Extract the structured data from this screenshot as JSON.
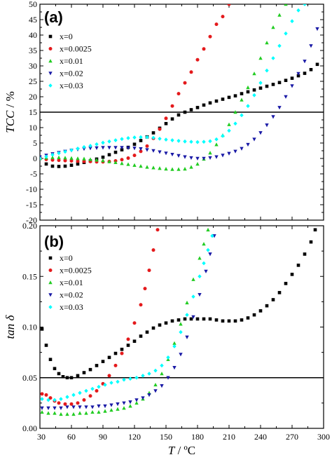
{
  "chart_data": [
    {
      "type": "scatter",
      "panel_label": "(a)",
      "ylabel": "TCC / %",
      "ylabel_italic": "TCC",
      "ylabel_unit": " / %",
      "xlim": [
        30,
        300
      ],
      "ylim": [
        -20,
        50
      ],
      "yticks": [
        -20,
        -15,
        -10,
        -5,
        0,
        5,
        10,
        15,
        20,
        25,
        30,
        35,
        40,
        45,
        50
      ],
      "xticks": [
        30,
        60,
        90,
        120,
        150,
        180,
        210,
        240,
        270,
        300
      ],
      "reference_line_y": 15,
      "legend_position": "top-left",
      "series": [
        {
          "name": "x=0",
          "color": "#000000",
          "marker": "square",
          "x": [
            30,
            36,
            42,
            48,
            54,
            60,
            66,
            72,
            78,
            84,
            90,
            96,
            102,
            108,
            114,
            120,
            126,
            132,
            138,
            144,
            150,
            156,
            162,
            168,
            174,
            180,
            186,
            192,
            198,
            204,
            210,
            216,
            222,
            228,
            234,
            240,
            246,
            252,
            258,
            264,
            270,
            276,
            282,
            288,
            294
          ],
          "y": [
            0,
            -1.8,
            -2.5,
            -2.6,
            -2.5,
            -2.2,
            -1.8,
            -1.3,
            -0.8,
            -0.2,
            0.4,
            1.2,
            2,
            2.8,
            3.6,
            4.6,
            5.8,
            7,
            8.3,
            9.8,
            11.3,
            12.8,
            14.1,
            15,
            15.8,
            16.5,
            17.3,
            18,
            18.6,
            19.2,
            19.8,
            20.3,
            21,
            21.6,
            22.2,
            22.8,
            23.4,
            24,
            24.6,
            25.3,
            26,
            26.8,
            27.6,
            28.8,
            30.5
          ]
        },
        {
          "name": "x=0.0025",
          "color": "#e41a1c",
          "marker": "circle",
          "x": [
            30,
            36,
            42,
            48,
            54,
            60,
            66,
            72,
            78,
            84,
            90,
            96,
            102,
            108,
            114,
            120,
            126,
            132,
            138,
            144,
            150,
            156,
            162,
            168,
            174,
            180,
            186,
            192,
            198,
            204,
            210
          ],
          "y": [
            0,
            -0.3,
            -0.5,
            -0.6,
            -0.7,
            -0.8,
            -0.9,
            -1.0,
            -1.0,
            -1.1,
            -1.1,
            -1.0,
            -0.8,
            -0.4,
            0.1,
            1,
            2.3,
            4,
            6.5,
            9.5,
            13,
            17,
            21,
            24.5,
            28,
            32,
            35.5,
            39.5,
            43.5,
            46,
            50
          ]
        },
        {
          "name": "x=0.01",
          "color": "#22cc22",
          "marker": "triangle-up",
          "x": [
            30,
            36,
            42,
            48,
            54,
            60,
            66,
            72,
            78,
            84,
            90,
            96,
            102,
            108,
            114,
            120,
            126,
            132,
            138,
            144,
            150,
            156,
            162,
            168,
            174,
            180,
            186,
            192,
            198,
            204,
            210,
            216,
            222,
            228,
            234,
            240,
            246,
            252,
            258,
            264
          ],
          "y": [
            0,
            0.2,
            0.3,
            0.3,
            0.2,
            0.1,
            0,
            -0.1,
            -0.3,
            -0.5,
            -0.7,
            -1,
            -1.3,
            -1.6,
            -1.9,
            -2.2,
            -2.5,
            -2.8,
            -3.0,
            -3.2,
            -3.4,
            -3.5,
            -3.5,
            -3.4,
            -2.8,
            -1.8,
            -0.2,
            1.8,
            4.5,
            7.5,
            11,
            15,
            19,
            23,
            27.5,
            32.5,
            37.5,
            42.5,
            46.5,
            50
          ]
        },
        {
          "name": "x=0.02",
          "color": "#1a1aa6",
          "marker": "triangle-down",
          "x": [
            30,
            36,
            42,
            48,
            54,
            60,
            66,
            72,
            78,
            84,
            90,
            96,
            102,
            108,
            114,
            120,
            126,
            132,
            138,
            144,
            150,
            156,
            162,
            168,
            174,
            180,
            186,
            192,
            198,
            204,
            210,
            216,
            222,
            228,
            234,
            240,
            246,
            252,
            258,
            264,
            270,
            276,
            282,
            288,
            294
          ],
          "y": [
            0.5,
            1,
            1.5,
            1.9,
            2.3,
            2.6,
            2.9,
            3.1,
            3.3,
            3.4,
            3.5,
            3.5,
            3.5,
            3.5,
            3.4,
            3.3,
            3.1,
            2.8,
            2.5,
            2.1,
            1.7,
            1.3,
            0.9,
            0.5,
            0.2,
            0,
            0,
            0.2,
            0.5,
            1,
            1.6,
            2.3,
            3.2,
            4.5,
            6.2,
            8.3,
            10.8,
            13.5,
            16.5,
            20,
            23.5,
            27.5,
            31.5,
            36.5,
            42
          ]
        },
        {
          "name": "x=0.03",
          "color": "#00ffff",
          "marker": "diamond",
          "x": [
            30,
            36,
            42,
            48,
            54,
            60,
            66,
            72,
            78,
            84,
            90,
            96,
            102,
            108,
            114,
            120,
            126,
            132,
            138,
            144,
            150,
            156,
            162,
            168,
            174,
            180,
            186,
            192,
            198,
            204,
            210,
            216,
            222,
            228,
            234,
            240,
            246,
            252,
            258,
            264,
            270,
            276,
            282
          ],
          "y": [
            0,
            0.6,
            1.2,
            1.7,
            2.2,
            2.7,
            3.2,
            3.7,
            4.1,
            4.6,
            5.1,
            5.5,
            5.9,
            6.3,
            6.6,
            6.8,
            6.9,
            6.9,
            6.7,
            6.4,
            6.1,
            5.9,
            5.7,
            5.5,
            5.4,
            5.3,
            5.4,
            5.6,
            6.2,
            7.3,
            9,
            11.3,
            14,
            17,
            20.5,
            24.5,
            28.5,
            32.5,
            36.5,
            40.5,
            44.5,
            48,
            50
          ]
        }
      ]
    },
    {
      "type": "scatter",
      "panel_label": "(b)",
      "xlabel": "T / ºC",
      "xlabel_italic": "T",
      "xlabel_unit": " / ºC",
      "ylabel": "tan δ",
      "xlim": [
        30,
        300
      ],
      "ylim": [
        0,
        0.2
      ],
      "yticks": [
        0.0,
        0.05,
        0.1,
        0.15,
        0.2
      ],
      "ytick_labels": [
        "0.00",
        "0.05",
        "0.10",
        "0.15",
        "0.20"
      ],
      "xticks": [
        30,
        60,
        90,
        120,
        150,
        180,
        210,
        240,
        270,
        300
      ],
      "xtick_labels": [
        "30",
        "60",
        "90",
        "120",
        "150",
        "180",
        "210",
        "240",
        "270",
        "300"
      ],
      "reference_line_y": 0.05,
      "legend_position": "top-left",
      "series": [
        {
          "name": "x=0",
          "color": "#000000",
          "marker": "square",
          "x": [
            32,
            36,
            40,
            44,
            48,
            52,
            56,
            60,
            66,
            72,
            78,
            84,
            90,
            96,
            102,
            108,
            114,
            120,
            126,
            132,
            138,
            144,
            150,
            156,
            162,
            168,
            174,
            180,
            186,
            192,
            198,
            204,
            210,
            216,
            222,
            228,
            234,
            240,
            246,
            252,
            258,
            264,
            270,
            276,
            282,
            288,
            292
          ],
          "y": [
            0.098,
            0.082,
            0.068,
            0.059,
            0.054,
            0.051,
            0.05,
            0.05,
            0.052,
            0.055,
            0.058,
            0.062,
            0.066,
            0.07,
            0.074,
            0.078,
            0.082,
            0.086,
            0.091,
            0.095,
            0.099,
            0.102,
            0.104,
            0.106,
            0.107,
            0.108,
            0.108,
            0.108,
            0.108,
            0.108,
            0.107,
            0.106,
            0.106,
            0.106,
            0.107,
            0.109,
            0.112,
            0.116,
            0.121,
            0.127,
            0.134,
            0.143,
            0.152,
            0.161,
            0.172,
            0.184,
            0.196
          ]
        },
        {
          "name": "x=0.0025",
          "color": "#e41a1c",
          "marker": "circle",
          "x": [
            32,
            36,
            40,
            44,
            48,
            54,
            60,
            66,
            72,
            78,
            84,
            90,
            96,
            102,
            108,
            114,
            120,
            126,
            130,
            134,
            138,
            142
          ],
          "y": [
            0.034,
            0.033,
            0.03,
            0.027,
            0.025,
            0.024,
            0.024,
            0.025,
            0.028,
            0.032,
            0.037,
            0.044,
            0.052,
            0.062,
            0.074,
            0.088,
            0.104,
            0.122,
            0.138,
            0.156,
            0.176,
            0.196
          ]
        },
        {
          "name": "x=0.01",
          "color": "#22cc22",
          "marker": "triangle-up",
          "x": [
            32,
            38,
            44,
            50,
            56,
            62,
            68,
            74,
            80,
            86,
            92,
            98,
            104,
            110,
            116,
            122,
            128,
            134,
            140,
            146,
            152,
            158,
            164,
            170,
            176,
            182,
            186,
            190
          ],
          "y": [
            0.016,
            0.015,
            0.015,
            0.014,
            0.014,
            0.014,
            0.015,
            0.015,
            0.016,
            0.016,
            0.017,
            0.018,
            0.019,
            0.02,
            0.022,
            0.025,
            0.029,
            0.035,
            0.043,
            0.054,
            0.068,
            0.084,
            0.103,
            0.124,
            0.147,
            0.168,
            0.182,
            0.196
          ]
        },
        {
          "name": "x=0.02",
          "color": "#1a1aa6",
          "marker": "triangle-down",
          "x": [
            32,
            38,
            44,
            50,
            56,
            62,
            68,
            74,
            80,
            86,
            92,
            98,
            104,
            110,
            116,
            122,
            128,
            134,
            140,
            146,
            152,
            158,
            164,
            170,
            176,
            182,
            188,
            192,
            196
          ],
          "y": [
            0.02,
            0.02,
            0.02,
            0.02,
            0.021,
            0.021,
            0.021,
            0.021,
            0.021,
            0.022,
            0.022,
            0.023,
            0.024,
            0.025,
            0.026,
            0.028,
            0.03,
            0.033,
            0.037,
            0.042,
            0.05,
            0.06,
            0.073,
            0.09,
            0.11,
            0.132,
            0.155,
            0.172,
            0.19
          ]
        },
        {
          "name": "x=0.03",
          "color": "#00ffff",
          "marker": "diamond",
          "x": [
            32,
            38,
            44,
            50,
            56,
            62,
            68,
            74,
            80,
            86,
            92,
            98,
            104,
            110,
            116,
            122,
            128,
            134,
            140,
            146,
            152,
            158,
            164,
            170,
            176,
            182,
            186,
            190,
            194
          ],
          "y": [
            0.029,
            0.028,
            0.028,
            0.029,
            0.031,
            0.033,
            0.035,
            0.037,
            0.039,
            0.041,
            0.043,
            0.045,
            0.046,
            0.048,
            0.049,
            0.05,
            0.052,
            0.054,
            0.057,
            0.062,
            0.07,
            0.081,
            0.095,
            0.112,
            0.13,
            0.15,
            0.163,
            0.176,
            0.19
          ]
        }
      ]
    }
  ]
}
